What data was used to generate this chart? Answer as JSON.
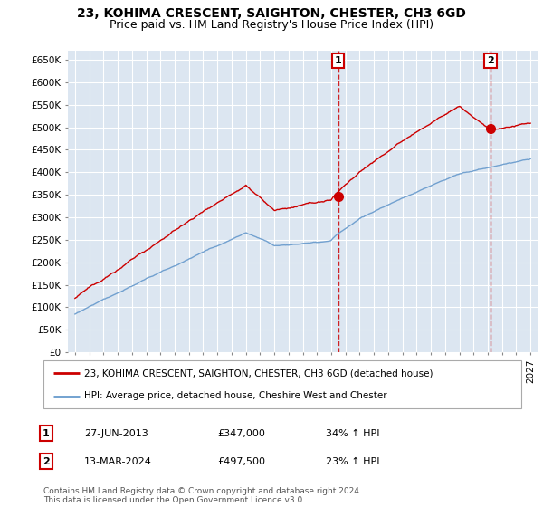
{
  "title": "23, KOHIMA CRESCENT, SAIGHTON, CHESTER, CH3 6GD",
  "subtitle": "Price paid vs. HM Land Registry's House Price Index (HPI)",
  "ylim": [
    0,
    670000
  ],
  "yticks": [
    0,
    50000,
    100000,
    150000,
    200000,
    250000,
    300000,
    350000,
    400000,
    450000,
    500000,
    550000,
    600000,
    650000
  ],
  "ytick_labels": [
    "£0",
    "£50K",
    "£100K",
    "£150K",
    "£200K",
    "£250K",
    "£300K",
    "£350K",
    "£400K",
    "£450K",
    "£500K",
    "£550K",
    "£600K",
    "£650K"
  ],
  "background_color": "#dce6f1",
  "grid_color": "#ffffff",
  "house_color": "#cc0000",
  "hpi_color": "#6699cc",
  "transaction1_date": 2013.49,
  "transaction1_price": 347000,
  "transaction2_date": 2024.19,
  "transaction2_price": 497500,
  "legend_house": "23, KOHIMA CRESCENT, SAIGHTON, CHESTER, CH3 6GD (detached house)",
  "legend_hpi": "HPI: Average price, detached house, Cheshire West and Chester",
  "note1_label": "1",
  "note1_date": "27-JUN-2013",
  "note1_price": "£347,000",
  "note1_hpi": "34% ↑ HPI",
  "note2_label": "2",
  "note2_date": "13-MAR-2024",
  "note2_price": "£497,500",
  "note2_hpi": "23% ↑ HPI",
  "footer": "Contains HM Land Registry data © Crown copyright and database right 2024.\nThis data is licensed under the Open Government Licence v3.0.",
  "title_fontsize": 10,
  "subtitle_fontsize": 9,
  "tick_fontsize": 7.5,
  "legend_fontsize": 7.5,
  "note_fontsize": 8,
  "footer_fontsize": 6.5
}
